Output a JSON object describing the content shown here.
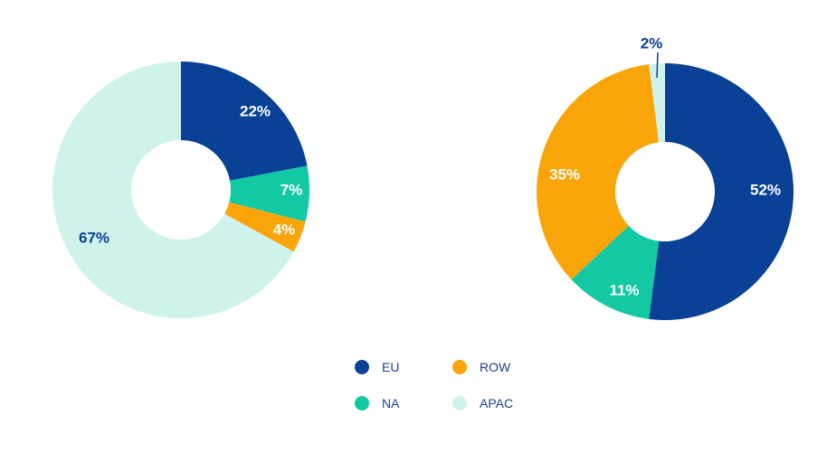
{
  "chart_data": [
    {
      "type": "pie",
      "donut": true,
      "slices": [
        {
          "category": "EU",
          "value": 22,
          "label": "22%"
        },
        {
          "category": "NA",
          "value": 7,
          "label": "7%"
        },
        {
          "category": "ROW",
          "value": 4,
          "label": "4%"
        },
        {
          "category": "APAC",
          "value": 67,
          "label": "67%"
        }
      ]
    },
    {
      "type": "pie",
      "donut": true,
      "slices": [
        {
          "category": "EU",
          "value": 52,
          "label": "52%"
        },
        {
          "category": "NA",
          "value": 11,
          "label": "11%"
        },
        {
          "category": "ROW",
          "value": 35,
          "label": "35%"
        },
        {
          "category": "APAC",
          "value": 2,
          "label": "2%"
        }
      ]
    }
  ],
  "legend": {
    "placement": "bottom-center",
    "items": [
      {
        "key": "EU",
        "label": "EU",
        "color": "#0a4196"
      },
      {
        "key": "ROW",
        "label": "ROW",
        "color": "#f9a50a"
      },
      {
        "key": "NA",
        "label": "NA",
        "color": "#13c9a4"
      },
      {
        "key": "APAC",
        "label": "APAC",
        "color": "#d0f2ec"
      }
    ]
  },
  "colors": {
    "EU": "#0a4196",
    "NA": "#13c9a4",
    "ROW": "#f9a50a",
    "APAC": "#d0f2ec",
    "label_light": "#ffffff",
    "label_dark": "#0a4196"
  }
}
